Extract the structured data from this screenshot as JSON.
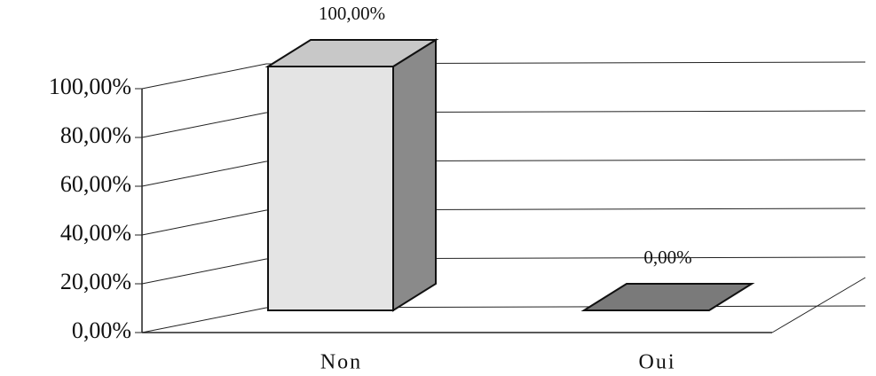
{
  "chart_data": {
    "type": "bar3d",
    "categories": [
      "Non",
      "Oui"
    ],
    "values": [
      100,
      0
    ],
    "value_labels": [
      "100,00%",
      "0,00%"
    ],
    "ylim": [
      0,
      100
    ],
    "yticks": [
      {
        "value": 0,
        "label": "0,00%"
      },
      {
        "value": 20,
        "label": "20,00%"
      },
      {
        "value": 40,
        "label": "40,00%"
      },
      {
        "value": 60,
        "label": "60,00%"
      },
      {
        "value": 80,
        "label": "80,00%"
      },
      {
        "value": 100,
        "label": "100,00%"
      }
    ],
    "grid": true
  }
}
